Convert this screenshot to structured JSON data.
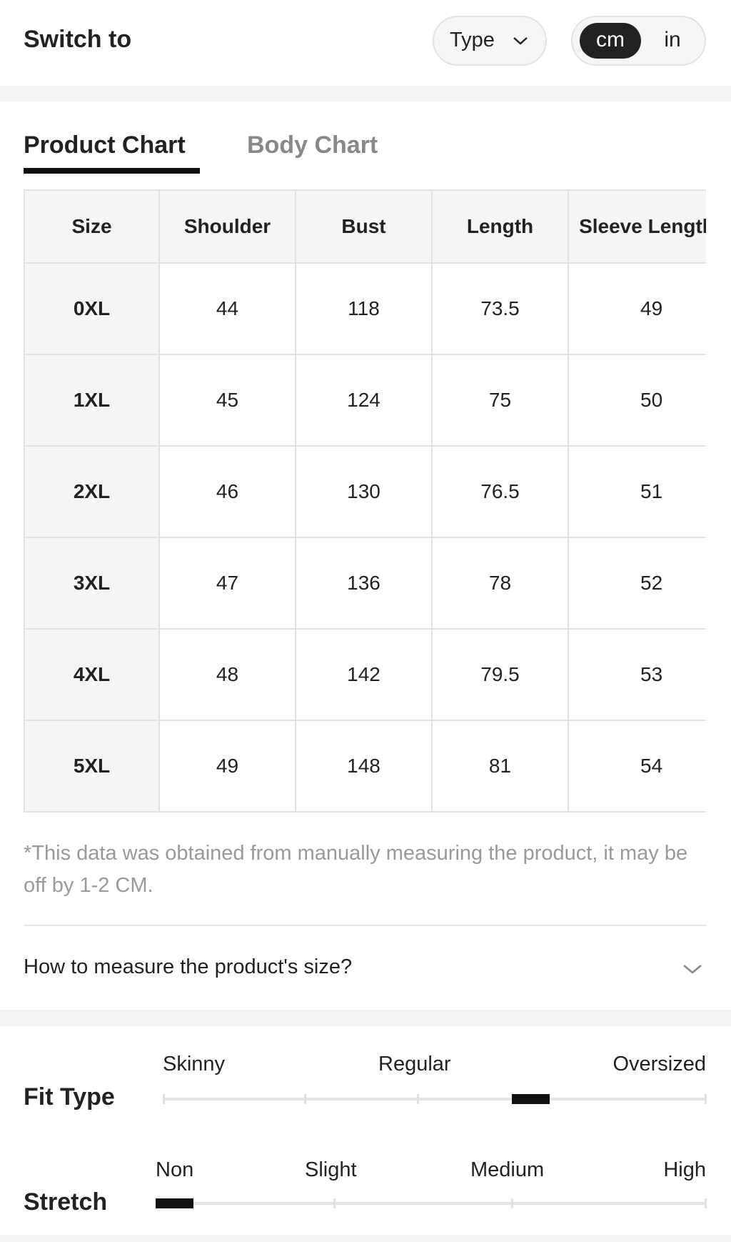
{
  "header": {
    "title": "Switch to",
    "type_button": "Type",
    "units": [
      "cm",
      "in"
    ]
  },
  "tabs": [
    "Product Chart",
    "Body Chart"
  ],
  "table": {
    "headers": [
      "Size",
      "Shoulder",
      "Bust",
      "Length",
      "Sleeve Length"
    ],
    "rows": [
      [
        "0XL",
        "44",
        "118",
        "73.5",
        "49"
      ],
      [
        "1XL",
        "45",
        "124",
        "75",
        "50"
      ],
      [
        "2XL",
        "46",
        "130",
        "76.5",
        "51"
      ],
      [
        "3XL",
        "47",
        "136",
        "78",
        "52"
      ],
      [
        "4XL",
        "48",
        "142",
        "79.5",
        "53"
      ],
      [
        "5XL",
        "49",
        "148",
        "81",
        "54"
      ]
    ]
  },
  "note": "*This data was obtained from manually measuring the product, it may be off by 1-2 CM.",
  "accordion": "How to measure the product's size?",
  "fit_type": {
    "label": "Fit Type",
    "scale": [
      "Skinny",
      "Regular",
      "Oversized"
    ]
  },
  "stretch": {
    "label": "Stretch",
    "scale": [
      "Non",
      "Slight",
      "Medium",
      "High"
    ]
  }
}
